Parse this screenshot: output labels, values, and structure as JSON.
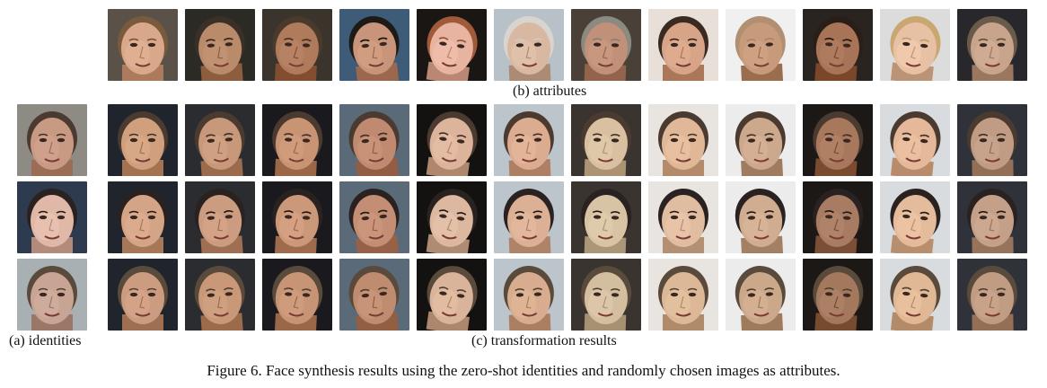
{
  "figure": {
    "number": "Figure 6.",
    "caption": "Face synthesis results using the zero-shot identities and randomly chosen images as attributes.",
    "cut_off_top_text": ""
  },
  "labels": {
    "attributes": "(b) attributes",
    "identities": "(a) identities",
    "results": "(c) transformation results"
  },
  "attribute_images": [
    {
      "name": "attribute-1",
      "skin": "#d9a88a",
      "bg": "#5a5248",
      "hair": "#7a5a3c"
    },
    {
      "name": "attribute-2",
      "skin": "#b98b6a",
      "bg": "#2c2a24",
      "hair": "#3a3028"
    },
    {
      "name": "attribute-3",
      "skin": "#b07a5c",
      "bg": "#3a342c",
      "hair": "#4a3a2c"
    },
    {
      "name": "attribute-4",
      "skin": "#c9957a",
      "bg": "#3e5c78",
      "hair": "#1e1a18"
    },
    {
      "name": "attribute-5",
      "skin": "#e6b4a0",
      "bg": "#1a1614",
      "hair": "#a05a3a"
    },
    {
      "name": "attribute-6",
      "skin": "#d8b8a0",
      "bg": "#b8c0c8",
      "hair": "#d8d4d0"
    },
    {
      "name": "attribute-7",
      "skin": "#c09078",
      "bg": "#4a4038",
      "hair": "#8a8a80"
    },
    {
      "name": "attribute-8",
      "skin": "#d8a488",
      "bg": "#e8e0d8",
      "hair": "#3a2a22"
    },
    {
      "name": "attribute-9",
      "skin": "#c89a7c",
      "bg": "#f0f0f0",
      "hair": "#b09070"
    },
    {
      "name": "attribute-10",
      "skin": "#a87458",
      "bg": "#2a2420",
      "hair": "#2a1e18"
    },
    {
      "name": "attribute-11",
      "skin": "#e8c0a4",
      "bg": "#dcdcdc",
      "hair": "#c8a870"
    },
    {
      "name": "attribute-12",
      "skin": "#c8a48c",
      "bg": "#28282c",
      "hair": "#6a5a4a"
    }
  ],
  "identity_images": [
    {
      "name": "identity-1",
      "skin": "#c89a84",
      "bg": "#8e8a84",
      "hair": "#4a3a30"
    },
    {
      "name": "identity-2",
      "skin": "#e0b8a8",
      "bg": "#2e3a4e",
      "hair": "#2a2220"
    },
    {
      "name": "identity-3",
      "skin": "#c8a494",
      "bg": "#a8b0b4",
      "hair": "#5a4a3c"
    }
  ],
  "results": [
    [
      "#d0a07e",
      "#c8987a",
      "#c89474",
      "#c08a70",
      "#dcb49c",
      "#dcac90",
      "#d8c0a0",
      "#e0b898",
      "#cca88c",
      "#a8785c",
      "#e4b898",
      "#c09c84"
    ],
    [
      "#d4a486",
      "#cc9c80",
      "#cc987a",
      "#c48e74",
      "#dcb8a0",
      "#dcb094",
      "#d8c4a4",
      "#e0bca0",
      "#d0ac90",
      "#a87c62",
      "#e4bc9c",
      "#c4a088"
    ],
    [
      "#cc9c80",
      "#c89878",
      "#c89476",
      "#c08c70",
      "#dab49a",
      "#d8ac8e",
      "#d4bea0",
      "#dcb896",
      "#cca88a",
      "#a4785c",
      "#e0b896",
      "#c09c82"
    ]
  ],
  "result_bgs": [
    "#20242c",
    "#2a2c30",
    "#1a1a1e",
    "#5a6a78",
    "#141210",
    "#bcc4cc",
    "#3a3430",
    "#e8e4e0",
    "#ececec",
    "#1c1816",
    "#d8dcde",
    "#30323a"
  ]
}
